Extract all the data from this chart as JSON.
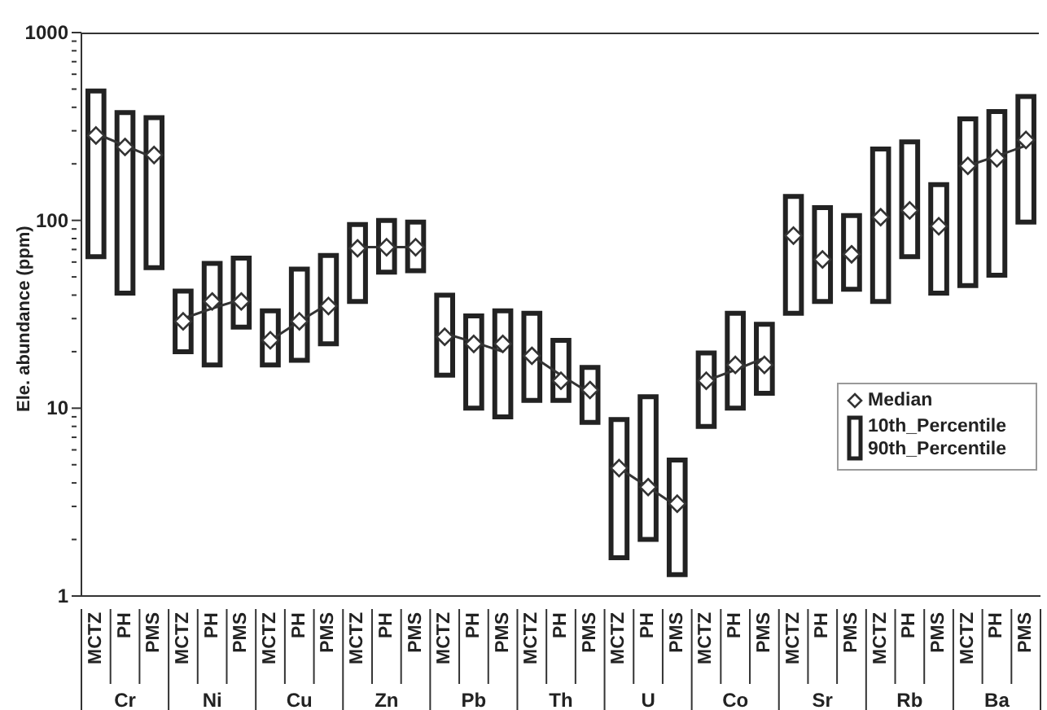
{
  "chart_data": {
    "type": "bar",
    "ylabel": "Ele. abundance (ppm)",
    "categories": [
      "MCTZ",
      "PH",
      "PMS",
      "MCTZ",
      "PH",
      "PMS",
      "MCTZ",
      "PH",
      "PMS",
      "MCTZ",
      "PH",
      "PMS",
      "MCTZ",
      "PH",
      "PMS",
      "MCTZ",
      "PH",
      "PMS",
      "MCTZ",
      "PH",
      "PMS",
      "MCTZ",
      "PH",
      "PMS",
      "MCTZ",
      "PH",
      "PMS",
      "MCTZ",
      "PH",
      "PMS",
      "MCTZ",
      "PH",
      "PMS"
    ],
    "annotations": [
      "Cr",
      "Ni",
      "Cu",
      "Zn",
      "Pb",
      "Th",
      "U",
      "Co",
      "Sr",
      "Rb",
      "Ba"
    ],
    "series": [
      {
        "type": "scatter",
        "name": "Median",
        "color": "#333333",
        "marker": "diamond",
        "values": [
          283,
          246,
          223,
          29,
          37,
          37,
          23,
          29,
          35,
          71,
          72,
          72,
          24,
          22,
          22,
          19,
          14,
          12.5,
          4.8,
          3.8,
          3.1,
          14,
          17,
          17,
          83,
          62,
          66,
          104,
          113,
          93,
          195,
          214,
          268
        ]
      },
      {
        "name": "10th_Percentile 90th_Percentile",
        "color": "#222222",
        "base": [
          64,
          41,
          56,
          20,
          17,
          27,
          17,
          18,
          22,
          37,
          53,
          54,
          15,
          10,
          9,
          11,
          11,
          8.4,
          1.6,
          2.0,
          1.3,
          8,
          10,
          12,
          32,
          37,
          43,
          37,
          64,
          41,
          45,
          51,
          98
        ],
        "values": [
          424,
          334,
          296,
          22,
          42,
          36,
          16,
          37,
          43,
          58,
          47,
          44,
          25,
          21,
          24,
          21,
          12,
          8.1,
          7.1,
          9.5,
          4.0,
          11.7,
          22,
          16,
          102,
          80,
          63,
          203,
          198,
          114,
          302,
          329,
          359
        ]
      },
      {
        "type": "line",
        "color": "#333333",
        "values": [
          290,
          250,
          215,
          null,
          null,
          null,
          null,
          null,
          null,
          null,
          null,
          null,
          null,
          null,
          null,
          null,
          null,
          null,
          null,
          null,
          null,
          null,
          null,
          null,
          null,
          null,
          null,
          null,
          null,
          null,
          null,
          null,
          null
        ]
      },
      {
        "type": "line",
        "color": "#333333",
        "values": [
          null,
          null,
          null,
          30,
          34,
          38,
          null,
          null,
          null,
          null,
          null,
          null,
          null,
          null,
          null,
          null,
          null,
          null,
          null,
          null,
          null,
          null,
          null,
          null,
          null,
          null,
          null,
          null,
          null,
          null,
          null,
          null,
          null
        ]
      },
      {
        "type": "line",
        "color": "#333333",
        "values": [
          null,
          null,
          null,
          null,
          null,
          null,
          23,
          29,
          36,
          null,
          null,
          null,
          null,
          null,
          null,
          null,
          null,
          null,
          null,
          null,
          null,
          null,
          null,
          null,
          null,
          null,
          null,
          null,
          null,
          null,
          null,
          null,
          null
        ]
      },
      {
        "type": "line",
        "color": "#333333",
        "values": [
          null,
          null,
          null,
          null,
          null,
          null,
          null,
          null,
          null,
          72,
          72,
          72,
          null,
          null,
          null,
          null,
          null,
          null,
          null,
          null,
          null,
          null,
          null,
          null,
          null,
          null,
          null,
          null,
          null,
          null,
          null,
          null,
          null
        ]
      },
      {
        "type": "line",
        "color": "#333333",
        "values": [
          null,
          null,
          null,
          null,
          null,
          null,
          null,
          null,
          null,
          null,
          null,
          null,
          25,
          22.5,
          20,
          null,
          null,
          null,
          null,
          null,
          null,
          null,
          null,
          null,
          null,
          null,
          null,
          null,
          null,
          null,
          null,
          null,
          null
        ]
      },
      {
        "type": "line",
        "color": "#333333",
        "values": [
          null,
          null,
          null,
          null,
          null,
          null,
          null,
          null,
          null,
          null,
          null,
          null,
          null,
          null,
          null,
          19,
          15,
          12,
          null,
          null,
          null,
          null,
          null,
          null,
          null,
          null,
          null,
          null,
          null,
          null,
          null,
          null,
          null
        ]
      },
      {
        "type": "line",
        "color": "#333333",
        "values": [
          null,
          null,
          null,
          null,
          null,
          null,
          null,
          null,
          null,
          null,
          null,
          null,
          null,
          null,
          null,
          null,
          null,
          null,
          4.8,
          3.8,
          3.0,
          null,
          null,
          null,
          null,
          null,
          null,
          null,
          null,
          null,
          null,
          null,
          null
        ]
      },
      {
        "type": "line",
        "color": "#333333",
        "values": [
          null,
          null,
          null,
          null,
          null,
          null,
          null,
          null,
          null,
          null,
          null,
          null,
          null,
          null,
          null,
          null,
          null,
          null,
          null,
          null,
          null,
          14,
          16,
          18.5,
          null,
          null,
          null,
          null,
          null,
          null,
          null,
          null,
          null
        ]
      },
      {
        "type": "line",
        "color": "#333333",
        "values": [
          null,
          null,
          null,
          null,
          null,
          null,
          null,
          null,
          null,
          null,
          null,
          null,
          null,
          null,
          null,
          null,
          null,
          null,
          null,
          null,
          null,
          null,
          null,
          null,
          null,
          null,
          null,
          null,
          null,
          null,
          195,
          220,
          250
        ]
      }
    ],
    "log": "y",
    "ylim": [
      1,
      1000
    ],
    "yticks": [
      1,
      {
        "value": 2,
        "label": null
      },
      {
        "value": 3,
        "label": null
      },
      {
        "value": 4,
        "label": null
      },
      {
        "value": 5,
        "label": null
      },
      {
        "value": 6,
        "label": null
      },
      {
        "value": 7,
        "label": null
      },
      {
        "value": 8,
        "label": null
      },
      {
        "value": 9,
        "label": null
      },
      10,
      {
        "value": 20,
        "label": null
      },
      {
        "value": 30,
        "label": null
      },
      {
        "value": 40,
        "label": null
      },
      {
        "value": 50,
        "label": null
      },
      {
        "value": 60,
        "label": null
      },
      {
        "value": 70,
        "label": null
      },
      {
        "value": 80,
        "label": null
      },
      {
        "value": 90,
        "label": null
      },
      100,
      {
        "value": 200,
        "label": null
      },
      {
        "value": 300,
        "label": null
      },
      {
        "value": 400,
        "label": null
      },
      {
        "value": 500,
        "label": null
      },
      {
        "value": 600,
        "label": null
      },
      {
        "value": 700,
        "label": null
      },
      {
        "value": 800,
        "label": null
      },
      {
        "value": 900,
        "label": null
      },
      1000
    ],
    "grid": false,
    "legend": "bottom right"
  }
}
